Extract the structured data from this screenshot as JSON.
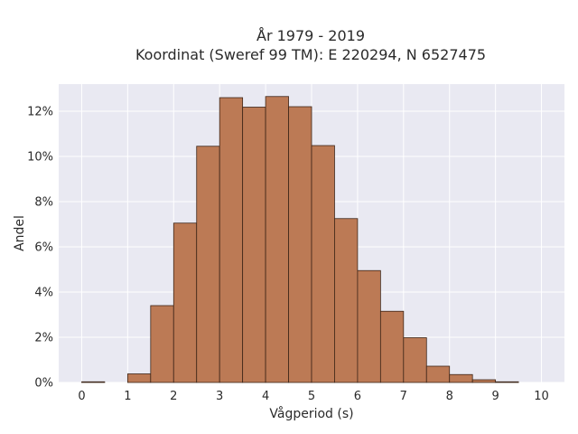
{
  "chart_data": {
    "type": "bar",
    "title_line1": "År 1979 - 2019",
    "title_line2": "Koordinat (Sweref 99 TM): E 220294, N 6527475",
    "xlabel": "Vågperiod (s)",
    "ylabel": "Andel",
    "bin_width": 0.5,
    "bins_start": [
      0.0,
      0.5,
      1.0,
      1.5,
      2.0,
      2.5,
      3.0,
      3.5,
      4.0,
      4.5,
      5.0,
      5.5,
      6.0,
      6.5,
      7.0,
      7.5,
      8.0,
      8.5,
      9.0,
      9.5
    ],
    "values": [
      0.03,
      0.0,
      0.38,
      3.4,
      7.05,
      10.45,
      12.6,
      12.18,
      12.65,
      12.2,
      10.48,
      7.25,
      4.95,
      3.15,
      1.98,
      0.72,
      0.35,
      0.12,
      0.03,
      0.0
    ],
    "x_ticks": [
      "0",
      "1",
      "2",
      "3",
      "4",
      "5",
      "6",
      "7",
      "8",
      "9",
      "10"
    ],
    "y_ticks": [
      "0%",
      "2%",
      "4%",
      "6%",
      "8%",
      "10%",
      "12%"
    ],
    "xlim": [
      -0.5,
      10.5
    ],
    "ylim": [
      0,
      13.2
    ],
    "colors": {
      "bar_fill": "#bc7a55",
      "bar_stroke": "#3d2518",
      "plot_bg": "#e9e9f2",
      "grid": "#ffffff"
    }
  }
}
